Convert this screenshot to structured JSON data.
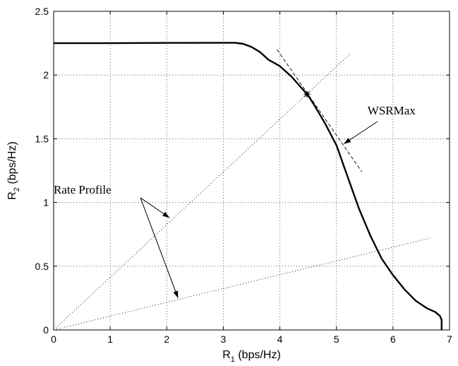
{
  "chart_data": {
    "type": "line",
    "xlabel": {
      "main": "R",
      "sub": "1",
      "unit": " (bps/Hz)"
    },
    "ylabel": {
      "main": "R",
      "sub": "2",
      "unit": " (bps/Hz)"
    },
    "xlim": [
      0,
      7
    ],
    "ylim": [
      0,
      2.5
    ],
    "x_ticks": [
      0,
      1,
      2,
      3,
      4,
      5,
      6,
      7
    ],
    "y_ticks": [
      0,
      0.5,
      1,
      1.5,
      2,
      2.5
    ],
    "grid": true,
    "series": [
      {
        "style": "solid",
        "points": [
          [
            0,
            2.25
          ],
          [
            1,
            2.25
          ],
          [
            2,
            2.252
          ],
          [
            3,
            2.253
          ],
          [
            3.2,
            2.253
          ],
          [
            3.35,
            2.245
          ],
          [
            3.5,
            2.22
          ],
          [
            3.65,
            2.18
          ],
          [
            3.8,
            2.12
          ],
          [
            4.0,
            2.07
          ],
          [
            4.2,
            1.99
          ],
          [
            4.4,
            1.89
          ],
          [
            4.5,
            1.84
          ],
          [
            4.6,
            1.77
          ],
          [
            4.8,
            1.62
          ],
          [
            5.0,
            1.45
          ],
          [
            5.2,
            1.2
          ],
          [
            5.4,
            0.95
          ],
          [
            5.6,
            0.74
          ],
          [
            5.8,
            0.56
          ],
          [
            6.0,
            0.43
          ],
          [
            6.2,
            0.32
          ],
          [
            6.4,
            0.23
          ],
          [
            6.6,
            0.17
          ],
          [
            6.75,
            0.14
          ],
          [
            6.83,
            0.11
          ],
          [
            6.86,
            0.08
          ],
          [
            6.86,
            0.0
          ]
        ]
      },
      {
        "style": "dotted",
        "points": [
          [
            0,
            0
          ],
          [
            5.25,
            2.17
          ]
        ]
      },
      {
        "style": "dotted",
        "points": [
          [
            0,
            0
          ],
          [
            6.65,
            0.72
          ]
        ]
      },
      {
        "style": "dashed",
        "points": [
          [
            3.95,
            2.2
          ],
          [
            5.45,
            1.24
          ]
        ]
      }
    ],
    "marker": {
      "x": 4.48,
      "y": 1.85,
      "symbol": "*"
    },
    "annotations": [
      {
        "text": "WSRMax",
        "x": 5.55,
        "y": 1.69,
        "arrow_to": [
          5.13,
          1.46
        ]
      },
      {
        "text": "Rate Profile",
        "x": 0.0,
        "y": 1.07,
        "arrows_to": [
          [
            2.05,
            0.88
          ],
          [
            2.2,
            0.25
          ]
        ]
      }
    ]
  }
}
